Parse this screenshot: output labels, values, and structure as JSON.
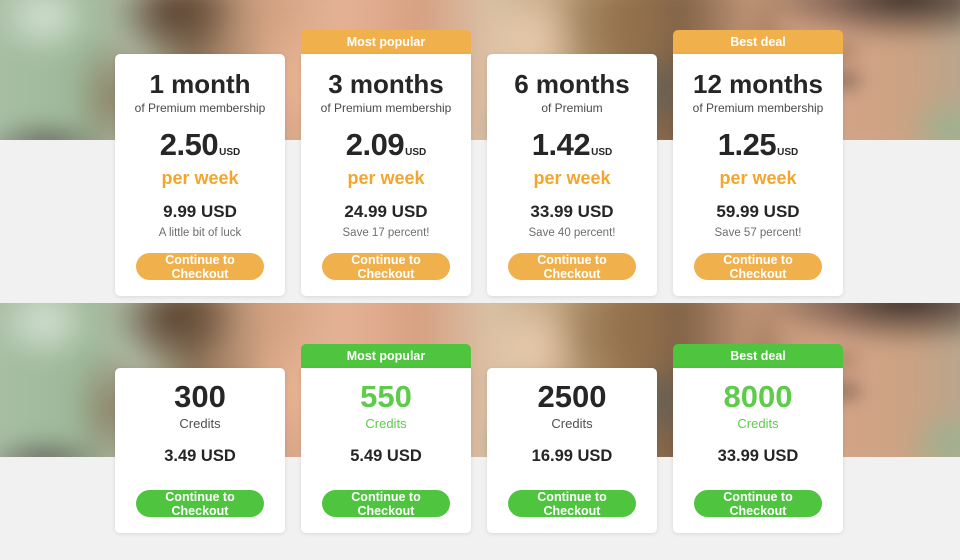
{
  "colors": {
    "orange_accent": "#f0b14c",
    "orange_text": "#f4a52e",
    "green_accent": "#4fc43f",
    "green_text": "#5ecb4a",
    "card_background": "#ffffff",
    "page_background": "#f1f1f1",
    "heading_text": "#262626",
    "muted_text": "#6e6e6e"
  },
  "membership_section": {
    "plans": [
      {
        "badge": "",
        "title": "1 month",
        "subtitle": "of Premium membership",
        "rate": "2.50",
        "rate_currency": "USD",
        "rate_period": "per week",
        "total": "9.99 USD",
        "note": "A little bit of luck",
        "cta": "Continue to Checkout"
      },
      {
        "badge": "Most popular",
        "title": "3 months",
        "subtitle": "of Premium membership",
        "rate": "2.09",
        "rate_currency": "USD",
        "rate_period": "per week",
        "total": "24.99 USD",
        "note": "Save 17 percent!",
        "cta": "Continue to Checkout"
      },
      {
        "badge": "",
        "title": "6 months",
        "subtitle": "of Premium",
        "rate": "1.42",
        "rate_currency": "USD",
        "rate_period": "per week",
        "total": "33.99 USD",
        "note": "Save 40 percent!",
        "cta": "Continue to Checkout"
      },
      {
        "badge": "Best deal",
        "title": "12 months",
        "subtitle": "of Premium membership",
        "rate": "1.25",
        "rate_currency": "USD",
        "rate_period": "per week",
        "total": "59.99 USD",
        "note": "Save 57 percent!",
        "cta": "Continue to Checkout"
      }
    ]
  },
  "credits_section": {
    "plans": [
      {
        "badge": "",
        "amount": "300",
        "unit": "Credits",
        "price": "3.49 USD",
        "cta": "Continue to Checkout"
      },
      {
        "badge": "Most popular",
        "amount": "550",
        "unit": "Credits",
        "price": "5.49 USD",
        "cta": "Continue to Checkout"
      },
      {
        "badge": "",
        "amount": "2500",
        "unit": "Credits",
        "price": "16.99 USD",
        "cta": "Continue to Checkout"
      },
      {
        "badge": "Best deal",
        "amount": "8000",
        "unit": "Credits",
        "price": "33.99 USD",
        "cta": "Continue to Checkout"
      }
    ]
  }
}
